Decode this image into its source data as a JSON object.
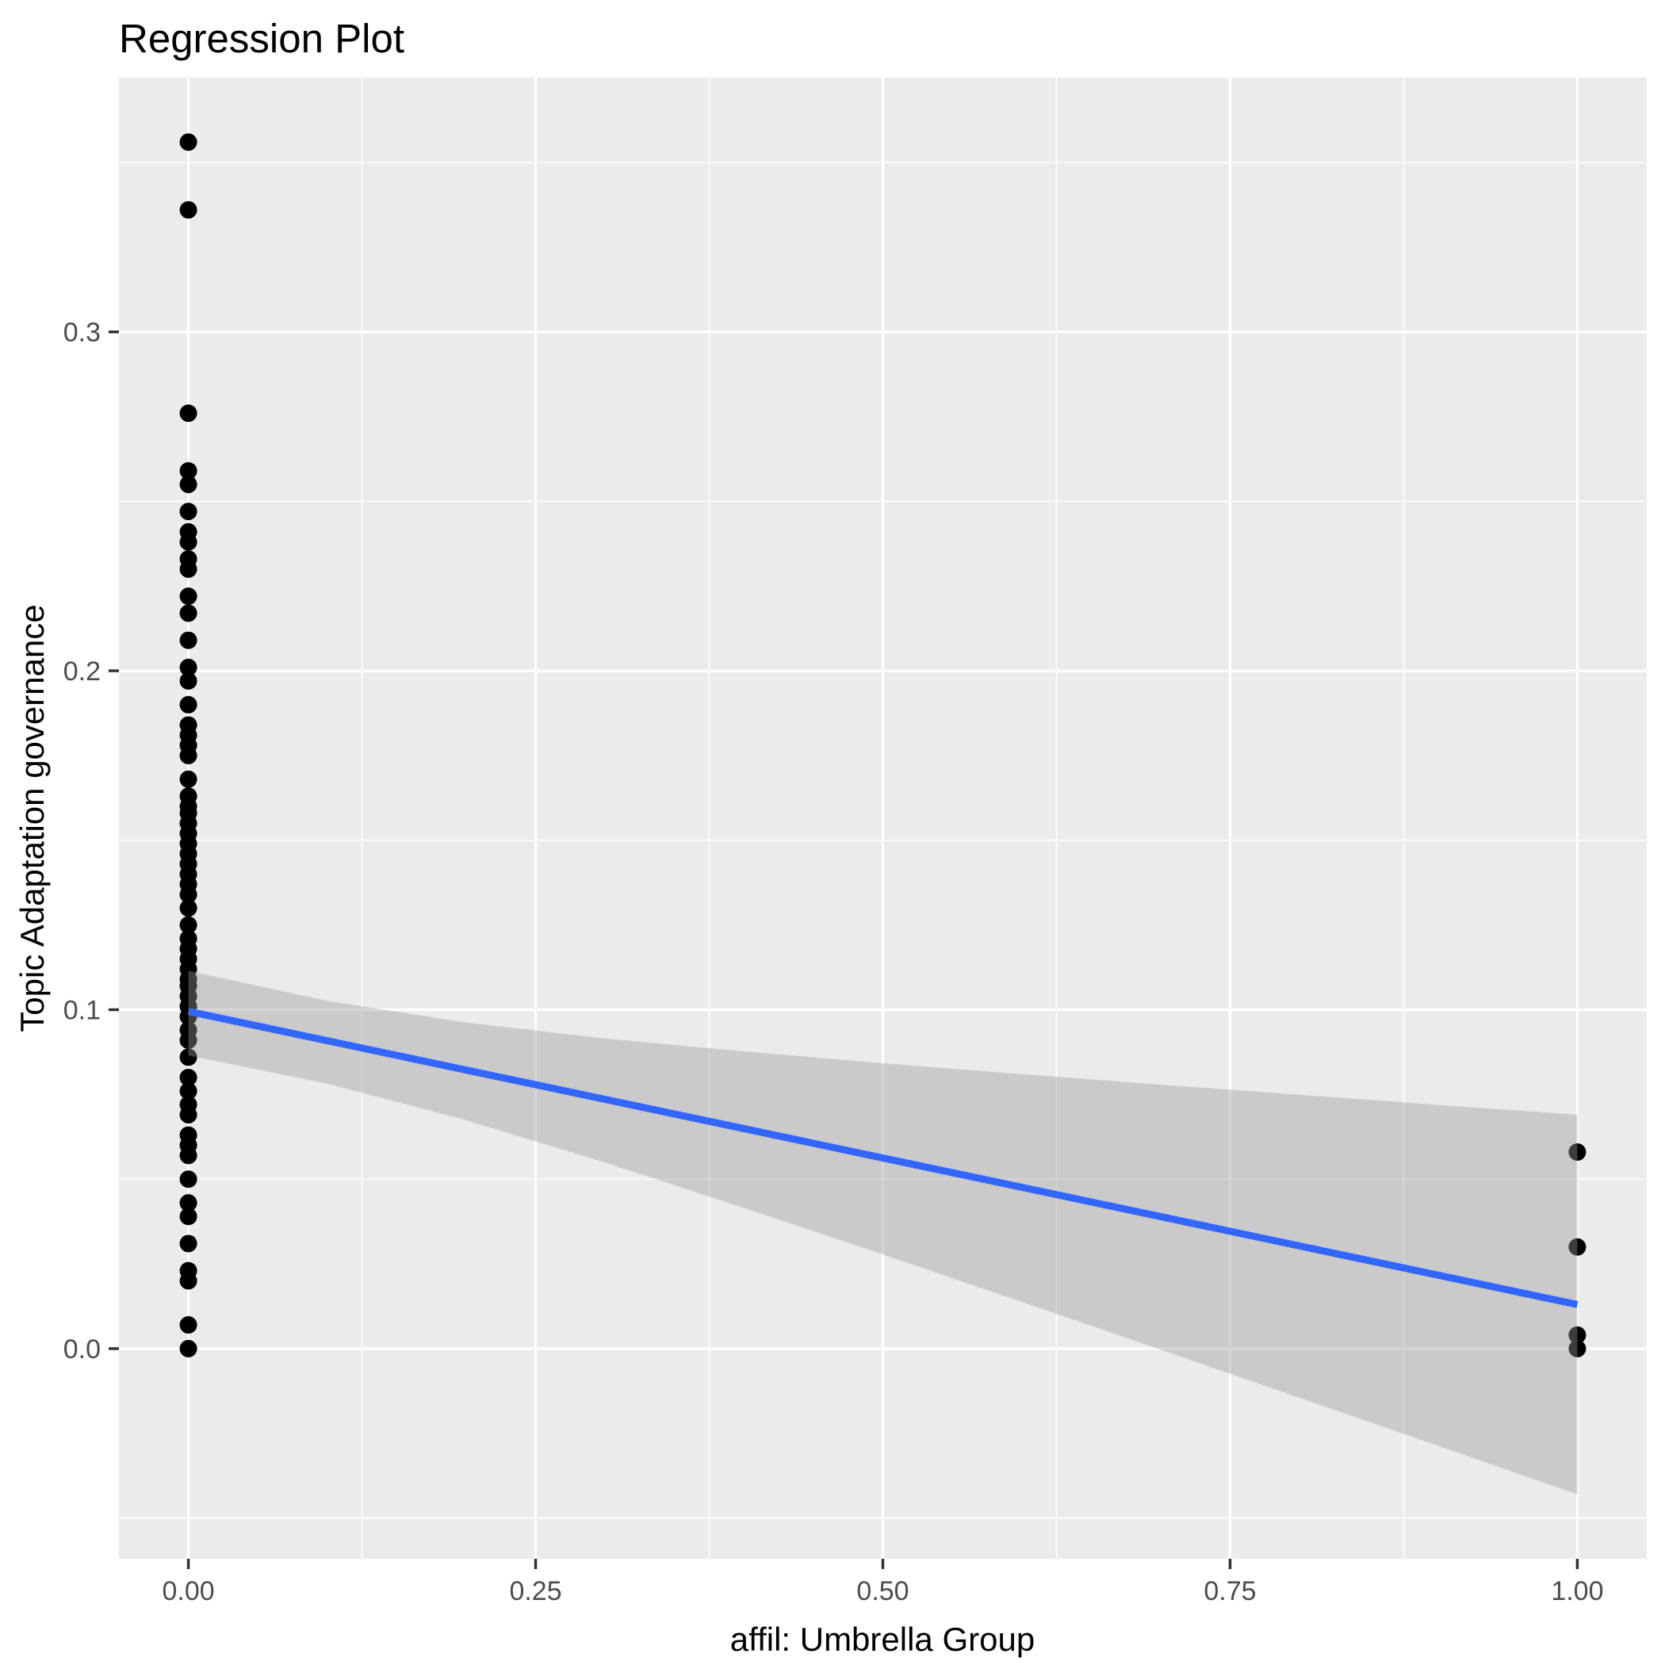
{
  "title": "Regression Plot",
  "chart_data": {
    "type": "scatter",
    "title": "Regression Plot",
    "xlabel": "affil: Umbrella Group",
    "ylabel": "Topic Adaptation governance",
    "xlim": [
      -0.05,
      1.05
    ],
    "ylim": [
      -0.062,
      0.375
    ],
    "grid": true,
    "legend": "none",
    "x_ticks": {
      "values": [
        0,
        0.25,
        0.5,
        0.75,
        1
      ],
      "labels": [
        "0.00",
        "0.25",
        "0.50",
        "0.75",
        "1.00"
      ]
    },
    "y_ticks": {
      "values": [
        0,
        0.1,
        0.2,
        0.3
      ],
      "labels": [
        "0.0",
        "0.1",
        "0.2",
        "0.3"
      ]
    },
    "x_minor_ticks": [
      0.125,
      0.375,
      0.625,
      0.875
    ],
    "y_minor_ticks": [
      -0.05,
      0.05,
      0.15,
      0.25,
      0.35
    ],
    "series": [
      {
        "name": "observations",
        "type": "points",
        "color": "#000000",
        "groups": [
          {
            "x": 0,
            "y": [
              0.356,
              0.336,
              0.276,
              0.259,
              0.255,
              0.247,
              0.241,
              0.238,
              0.233,
              0.23,
              0.222,
              0.217,
              0.209,
              0.201,
              0.197,
              0.19,
              0.184,
              0.181,
              0.178,
              0.175,
              0.168,
              0.163,
              0.16,
              0.158,
              0.155,
              0.152,
              0.149,
              0.146,
              0.143,
              0.14,
              0.137,
              0.134,
              0.13,
              0.125,
              0.121,
              0.118,
              0.115,
              0.112,
              0.109,
              0.107,
              0.104,
              0.101,
              0.098,
              0.094,
              0.091,
              0.086,
              0.08,
              0.076,
              0.072,
              0.069,
              0.063,
              0.06,
              0.057,
              0.05,
              0.043,
              0.039,
              0.031,
              0.023,
              0.02,
              0.007,
              0.0
            ]
          },
          {
            "x": 1,
            "y": [
              0.058,
              0.03,
              0.004,
              0.0
            ]
          }
        ]
      },
      {
        "name": "linear-fit",
        "type": "line",
        "color": "#3366FF",
        "x": [
          0,
          1
        ],
        "y": [
          0.0995,
          0.013
        ],
        "intercept": 0.0995,
        "slope": -0.0865
      },
      {
        "name": "confidence-band",
        "type": "band",
        "fill": "#999999",
        "opacity": 0.4,
        "x": [
          0,
          0.1,
          0.2,
          0.3,
          0.4,
          0.5,
          0.6,
          0.7,
          0.8,
          0.9,
          1.0
        ],
        "upper": [
          0.1115,
          0.1026,
          0.0962,
          0.0915,
          0.0877,
          0.0842,
          0.081,
          0.0779,
          0.0749,
          0.0719,
          0.069
        ],
        "lower": [
          0.0865,
          0.0782,
          0.0674,
          0.0549,
          0.0415,
          0.0278,
          0.0138,
          -0.0003,
          -0.0145,
          -0.0287,
          -0.043
        ]
      }
    ],
    "colors": {
      "background": "#FFFFFF",
      "panel": "#EBEBEB",
      "gridline": "#FFFFFF",
      "tick_mark": "#333333",
      "tick_label": "#4D4D4D",
      "axis_title": "#000000",
      "title": "#000000",
      "point": "#000000",
      "fit_line": "#3366FF"
    }
  }
}
